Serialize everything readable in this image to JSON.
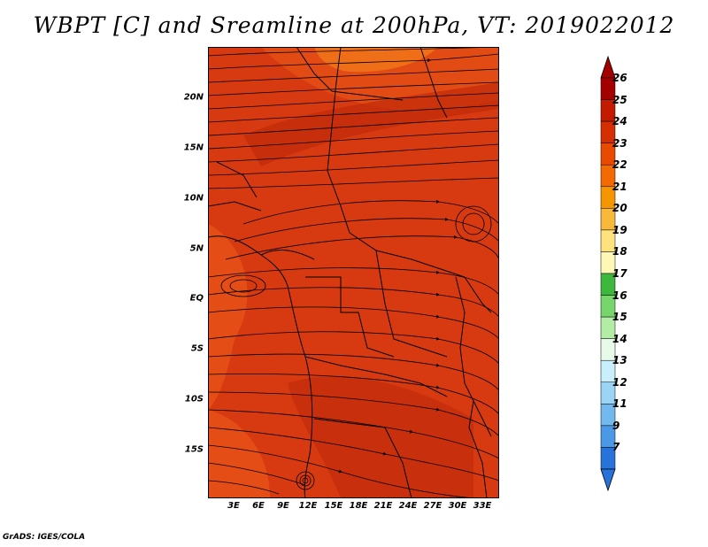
{
  "title": "WBPT [C] and Sreamline at 200hPa, VT: 2019022012",
  "credit": "GrADS: IGES/COLA",
  "lat_ticks": [
    "20N",
    "15N",
    "10N",
    "5N",
    "EQ",
    "5S",
    "10S",
    "15S"
  ],
  "lon_ticks": [
    "3E",
    "6E",
    "9E",
    "12E",
    "15E",
    "18E",
    "21E",
    "24E",
    "27E",
    "30E",
    "33E"
  ],
  "colorbar": {
    "labels": [
      "26",
      "25",
      "24",
      "23",
      "22",
      "21",
      "20",
      "19",
      "18",
      "17",
      "16",
      "15",
      "14",
      "13",
      "12",
      "11",
      "9",
      "7"
    ],
    "colors": [
      "#a50000",
      "#c41a00",
      "#d52e00",
      "#e84a00",
      "#f26a00",
      "#f59600",
      "#f8b93a",
      "#fde27e",
      "#fff7b5",
      "#3db83d",
      "#76d66c",
      "#b3eca5",
      "#e8fbe8",
      "#c9eefc",
      "#9cd4f5",
      "#72b9ee",
      "#4b98e6",
      "#2873da"
    ]
  },
  "map": {
    "fill_base": "#d73a10",
    "fill_dark": "#c02a0a",
    "fill_light": "#ec5a1a",
    "fill_orange": "#f28a1a"
  }
}
